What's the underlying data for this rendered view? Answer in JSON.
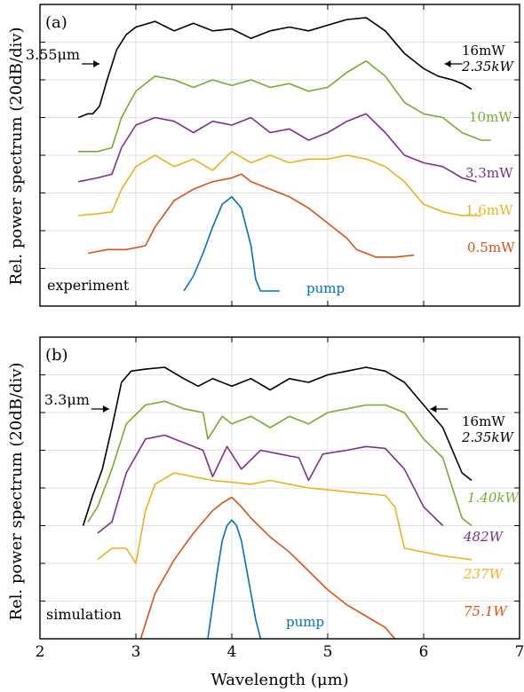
{
  "colors": {
    "black": "#000000",
    "green": "#77ac30",
    "purple": "#7e2f8e",
    "yellow": "#edb120",
    "orange": "#d95319",
    "blue": "#0072bd"
  },
  "figure": {
    "ylabel_a": "Rel. power spectrum (20dB/div)",
    "ylabel_b": "Rel. power spectrum (20dB/div)",
    "xlabel": "Wavelength (μm)",
    "x_ticks": [
      "2",
      "3",
      "4",
      "5",
      "6",
      "7"
    ]
  },
  "chart_data": [
    {
      "type": "line",
      "panel": "(a)",
      "note": "experiment",
      "xlim": [
        2,
        7
      ],
      "grid": true,
      "edge_marks": [
        {
          "text": "3.55μm",
          "x": 3.55
        }
      ],
      "series": [
        {
          "name": "16mW",
          "name2": "2.35kW",
          "color": "#000000",
          "x": [
            2.4,
            2.5,
            2.55,
            2.62,
            2.7,
            2.8,
            2.9,
            3.0,
            3.2,
            3.4,
            3.6,
            3.8,
            4.0,
            4.2,
            4.4,
            4.6,
            4.8,
            5.0,
            5.2,
            5.4,
            5.6,
            5.8,
            6.0,
            6.15,
            6.3,
            6.4,
            6.5
          ],
          "y": [
            5.0,
            5.1,
            5.1,
            5.3,
            6.0,
            6.8,
            7.2,
            7.4,
            7.55,
            7.3,
            7.5,
            7.3,
            7.35,
            7.1,
            7.3,
            7.4,
            7.3,
            7.45,
            7.6,
            7.65,
            7.3,
            6.7,
            6.3,
            6.1,
            6.0,
            5.9,
            5.75
          ]
        },
        {
          "name": "10mW",
          "color": "#77ac30",
          "x": [
            2.4,
            2.6,
            2.75,
            2.85,
            3.0,
            3.2,
            3.4,
            3.6,
            3.8,
            4.0,
            4.2,
            4.4,
            4.6,
            4.8,
            5.0,
            5.2,
            5.4,
            5.6,
            5.8,
            6.0,
            6.2,
            6.4,
            6.6,
            6.7
          ],
          "y": [
            4.1,
            4.1,
            4.2,
            5.0,
            5.7,
            6.1,
            6.0,
            5.8,
            6.0,
            5.85,
            6.0,
            5.8,
            5.9,
            5.7,
            5.8,
            6.2,
            6.5,
            6.1,
            5.4,
            5.1,
            5.0,
            4.6,
            4.4,
            4.4
          ]
        },
        {
          "name": "3.3mW",
          "color": "#7e2f8e",
          "x": [
            2.4,
            2.6,
            2.75,
            2.85,
            3.0,
            3.2,
            3.4,
            3.6,
            3.8,
            4.0,
            4.2,
            4.4,
            4.6,
            4.8,
            5.0,
            5.2,
            5.4,
            5.6,
            5.8,
            6.0,
            6.2,
            6.4,
            6.55
          ],
          "y": [
            3.3,
            3.4,
            3.5,
            4.2,
            4.8,
            5.0,
            4.9,
            4.6,
            4.9,
            4.8,
            5.0,
            4.6,
            4.7,
            4.4,
            4.6,
            4.9,
            5.1,
            4.6,
            4.0,
            3.8,
            3.7,
            3.4,
            3.3
          ]
        },
        {
          "name": "1.6mW",
          "color": "#edb120",
          "x": [
            2.4,
            2.6,
            2.75,
            2.85,
            3.0,
            3.2,
            3.4,
            3.6,
            3.8,
            4.0,
            4.2,
            4.4,
            4.6,
            4.8,
            5.0,
            5.2,
            5.4,
            5.6,
            5.8,
            6.0,
            6.2,
            6.4,
            6.6
          ],
          "y": [
            2.4,
            2.45,
            2.5,
            3.1,
            3.7,
            4.0,
            3.7,
            3.9,
            3.6,
            4.1,
            3.8,
            4.0,
            3.8,
            3.9,
            3.9,
            4.0,
            3.9,
            3.7,
            3.3,
            2.7,
            2.5,
            2.4,
            2.4
          ]
        },
        {
          "name": "0.5mW",
          "color": "#d95319",
          "x": [
            2.5,
            2.7,
            2.9,
            3.1,
            3.2,
            3.4,
            3.6,
            3.8,
            4.0,
            4.1,
            4.2,
            4.4,
            4.6,
            4.8,
            5.0,
            5.2,
            5.3,
            5.5,
            5.7,
            5.9
          ],
          "y": [
            1.4,
            1.5,
            1.5,
            1.6,
            2.1,
            2.8,
            3.1,
            3.3,
            3.4,
            3.5,
            3.3,
            3.1,
            2.9,
            2.6,
            2.2,
            1.8,
            1.5,
            1.3,
            1.3,
            1.35
          ]
        },
        {
          "name": "pump",
          "color": "#0072bd",
          "x": [
            3.5,
            3.6,
            3.7,
            3.8,
            3.9,
            4.0,
            4.1,
            4.2,
            4.25,
            4.3,
            4.4,
            4.5
          ],
          "y": [
            0.4,
            0.8,
            1.4,
            2.1,
            2.7,
            2.9,
            2.6,
            1.6,
            0.7,
            0.4,
            0.4,
            0.4
          ]
        }
      ]
    },
    {
      "type": "line",
      "panel": "(b)",
      "note": "simulation",
      "xlim": [
        2,
        7
      ],
      "grid": true,
      "edge_marks": [
        {
          "text": "3.3μm",
          "x": 3.3
        }
      ],
      "series": [
        {
          "name": "16mW",
          "name2": "2.35kW",
          "color": "#000000",
          "x": [
            2.45,
            2.55,
            2.65,
            2.75,
            2.85,
            2.95,
            3.1,
            3.3,
            3.5,
            3.65,
            3.8,
            4.0,
            4.2,
            4.4,
            4.6,
            4.8,
            5.0,
            5.2,
            5.4,
            5.6,
            5.8,
            6.0,
            6.2,
            6.4,
            6.5
          ],
          "y": [
            3.0,
            3.8,
            4.5,
            5.6,
            6.8,
            7.1,
            7.15,
            7.2,
            6.9,
            6.7,
            6.9,
            6.7,
            6.9,
            6.6,
            6.9,
            6.8,
            7.0,
            7.1,
            7.2,
            7.1,
            6.8,
            6.2,
            5.6,
            4.4,
            4.2
          ]
        },
        {
          "name": "1.40kW",
          "color": "#77ac30",
          "x": [
            2.5,
            2.6,
            2.75,
            2.9,
            3.1,
            3.3,
            3.5,
            3.7,
            3.75,
            3.9,
            4.0,
            4.2,
            4.4,
            4.6,
            4.8,
            5.0,
            5.2,
            5.4,
            5.6,
            5.8,
            6.0,
            6.2,
            6.4,
            6.5
          ],
          "y": [
            3.1,
            3.5,
            4.5,
            5.7,
            6.2,
            6.3,
            6.1,
            6.0,
            5.3,
            5.9,
            5.7,
            5.9,
            5.6,
            5.9,
            5.7,
            6.0,
            6.1,
            6.2,
            6.2,
            6.0,
            5.3,
            4.8,
            3.2,
            3.0
          ]
        },
        {
          "name": "482W",
          "color": "#7e2f8e",
          "x": [
            2.6,
            2.75,
            2.9,
            3.1,
            3.3,
            3.5,
            3.7,
            3.8,
            3.95,
            4.1,
            4.3,
            4.5,
            4.7,
            4.8,
            4.95,
            5.2,
            5.4,
            5.6,
            5.8,
            6.0,
            6.2
          ],
          "y": [
            2.8,
            3.1,
            4.4,
            5.3,
            5.4,
            5.2,
            5.0,
            4.3,
            5.1,
            4.5,
            5.0,
            4.9,
            4.8,
            4.2,
            4.9,
            5.0,
            5.1,
            5.05,
            4.5,
            3.5,
            3.0
          ]
        },
        {
          "name": "237W",
          "color": "#edb120",
          "x": [
            2.6,
            2.75,
            2.9,
            3.0,
            3.1,
            3.2,
            3.4,
            3.6,
            3.8,
            4.0,
            4.2,
            4.4,
            4.6,
            4.8,
            5.0,
            5.2,
            5.4,
            5.6,
            5.7,
            5.8,
            6.0,
            6.2,
            6.5
          ],
          "y": [
            2.1,
            2.4,
            2.4,
            2.0,
            3.4,
            4.1,
            4.4,
            4.3,
            4.2,
            4.15,
            4.1,
            4.2,
            4.1,
            4.0,
            3.95,
            3.9,
            3.85,
            3.8,
            3.5,
            2.4,
            2.3,
            2.2,
            2.1
          ]
        },
        {
          "name": "75.1W",
          "color": "#d95319",
          "x": [
            3.05,
            3.2,
            3.4,
            3.6,
            3.8,
            3.9,
            4.0,
            4.1,
            4.2,
            4.4,
            4.6,
            4.8,
            5.0,
            5.2,
            5.4,
            5.6,
            5.7
          ],
          "y": [
            0.0,
            1.2,
            2.1,
            2.8,
            3.4,
            3.6,
            3.75,
            3.5,
            3.2,
            2.7,
            2.3,
            1.8,
            1.3,
            0.9,
            0.6,
            0.3,
            0.0
          ]
        },
        {
          "name": "pump",
          "color": "#0072bd",
          "x": [
            3.75,
            3.8,
            3.85,
            3.9,
            3.95,
            4.0,
            4.05,
            4.1,
            4.15,
            4.2,
            4.25,
            4.3
          ],
          "y": [
            0.0,
            0.9,
            1.8,
            2.6,
            3.0,
            3.15,
            3.0,
            2.6,
            1.9,
            1.2,
            0.5,
            0.0
          ]
        }
      ]
    }
  ]
}
